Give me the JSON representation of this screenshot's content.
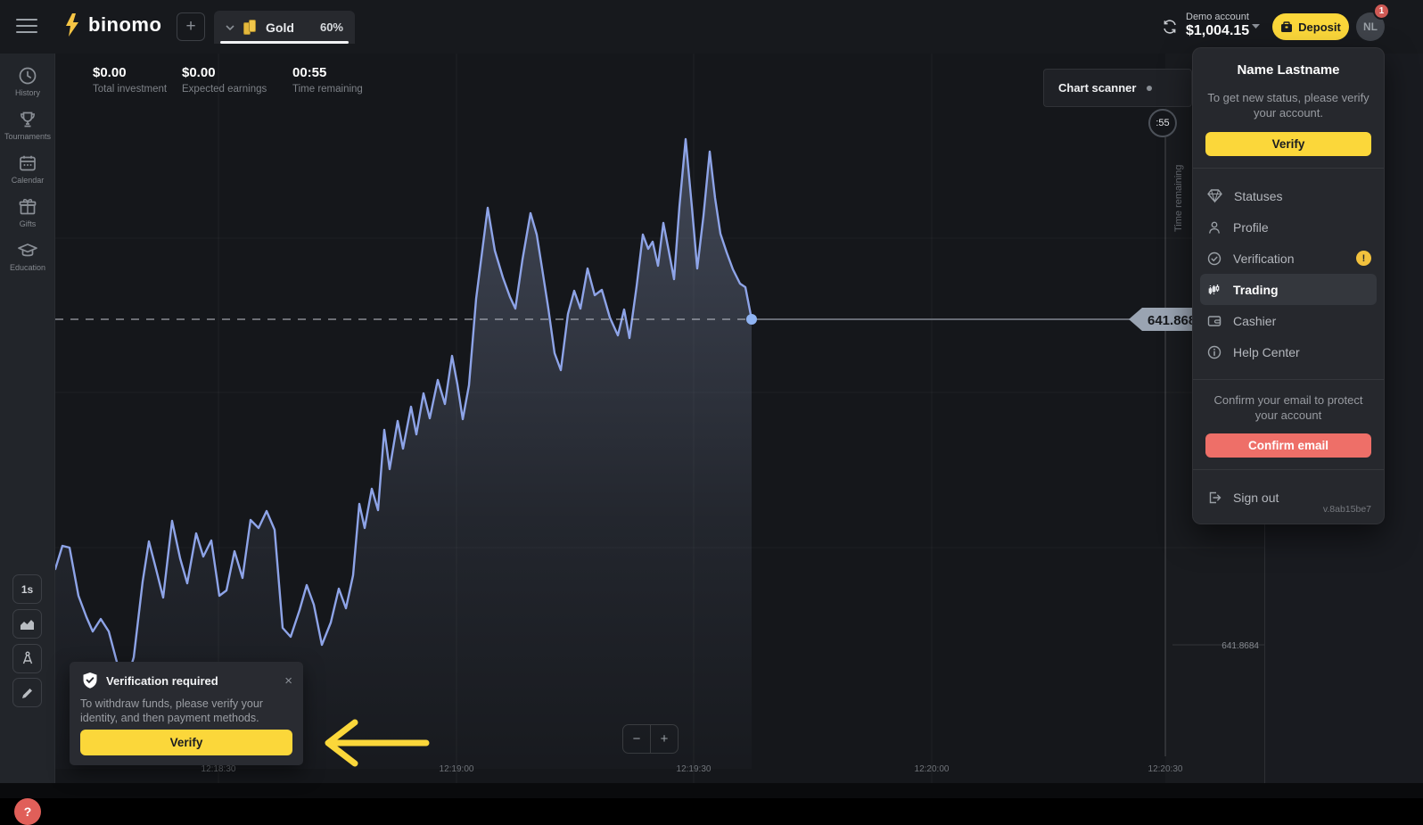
{
  "topbar": {
    "brand": "binomo",
    "plus_label": "+",
    "asset_tab": {
      "name": "Gold",
      "payout": "60%"
    },
    "account": {
      "type": "Demo account",
      "balance": "$1,004.15"
    },
    "deposit_label": "Deposit",
    "avatar_initials": "NL",
    "notification_count": "1"
  },
  "sidebar": {
    "items": [
      {
        "label": "History"
      },
      {
        "label": "Tournaments"
      },
      {
        "label": "Calendar"
      },
      {
        "label": "Gifts"
      },
      {
        "label": "Education"
      }
    ],
    "tools": {
      "interval": "1s"
    },
    "help_label": "?"
  },
  "stats": {
    "total_investment": {
      "value": "$0.00",
      "label": "Total investment"
    },
    "expected_earnings": {
      "value": "$0.00",
      "label": "Expected earnings"
    },
    "time_remaining": {
      "value": "00:55",
      "label": "Time remaining"
    }
  },
  "chart": {
    "scanner_label": "Chart scanner",
    "countdown": ":55",
    "axis_time_label": "Time remaining",
    "price_tag": "641.868",
    "axis_price": "641.8684",
    "time_labels": [
      "12:18:30",
      "12:19:00",
      "12:19:30",
      "12:20:00",
      "12:20:30"
    ],
    "zoom_out": "−",
    "zoom_in": "+"
  },
  "chart_data": {
    "type": "line",
    "asset": "Gold",
    "current_price": 641.868,
    "axis_price": 641.8684,
    "x_ticks": [
      "12:18:30",
      "12:19:00",
      "12:19:30",
      "12:20:00",
      "12:20:30"
    ],
    "line_color": "#8ea4e8",
    "dot_color": "#8fb3f2",
    "fill_baseline": 862,
    "points": [
      [
        62,
        638
      ],
      [
        70,
        612
      ],
      [
        78,
        614
      ],
      [
        88,
        668
      ],
      [
        97,
        692
      ],
      [
        104,
        708
      ],
      [
        113,
        694
      ],
      [
        122,
        708
      ],
      [
        131,
        742
      ],
      [
        137,
        760
      ],
      [
        144,
        757
      ],
      [
        150,
        737
      ],
      [
        160,
        652
      ],
      [
        167,
        607
      ],
      [
        175,
        638
      ],
      [
        183,
        670
      ],
      [
        193,
        584
      ],
      [
        202,
        626
      ],
      [
        210,
        654
      ],
      [
        220,
        598
      ],
      [
        228,
        624
      ],
      [
        237,
        606
      ],
      [
        246,
        668
      ],
      [
        254,
        662
      ],
      [
        263,
        618
      ],
      [
        272,
        648
      ],
      [
        281,
        583
      ],
      [
        290,
        592
      ],
      [
        299,
        573
      ],
      [
        308,
        594
      ],
      [
        317,
        704
      ],
      [
        326,
        714
      ],
      [
        336,
        684
      ],
      [
        344,
        656
      ],
      [
        352,
        678
      ],
      [
        361,
        723
      ],
      [
        371,
        698
      ],
      [
        380,
        660
      ],
      [
        388,
        682
      ],
      [
        396,
        645
      ],
      [
        403,
        565
      ],
      [
        409,
        592
      ],
      [
        417,
        548
      ],
      [
        424,
        572
      ],
      [
        431,
        482
      ],
      [
        437,
        526
      ],
      [
        446,
        472
      ],
      [
        452,
        503
      ],
      [
        461,
        456
      ],
      [
        467,
        487
      ],
      [
        475,
        441
      ],
      [
        482,
        469
      ],
      [
        491,
        426
      ],
      [
        499,
        453
      ],
      [
        507,
        399
      ],
      [
        513,
        431
      ],
      [
        519,
        470
      ],
      [
        526,
        432
      ],
      [
        534,
        335
      ],
      [
        547,
        233
      ],
      [
        555,
        281
      ],
      [
        564,
        311
      ],
      [
        572,
        333
      ],
      [
        578,
        346
      ],
      [
        586,
        291
      ],
      [
        595,
        239
      ],
      [
        602,
        263
      ],
      [
        608,
        301
      ],
      [
        615,
        346
      ],
      [
        622,
        396
      ],
      [
        629,
        415
      ],
      [
        637,
        352
      ],
      [
        644,
        326
      ],
      [
        651,
        346
      ],
      [
        659,
        301
      ],
      [
        667,
        331
      ],
      [
        675,
        325
      ],
      [
        684,
        356
      ],
      [
        693,
        376
      ],
      [
        700,
        347
      ],
      [
        706,
        379
      ],
      [
        714,
        321
      ],
      [
        721,
        263
      ],
      [
        727,
        279
      ],
      [
        732,
        271
      ],
      [
        738,
        298
      ],
      [
        744,
        250
      ],
      [
        750,
        281
      ],
      [
        756,
        313
      ],
      [
        762,
        232
      ],
      [
        769,
        156
      ],
      [
        776,
        232
      ],
      [
        782,
        301
      ],
      [
        789,
        242
      ],
      [
        796,
        170
      ],
      [
        802,
        222
      ],
      [
        808,
        262
      ],
      [
        815,
        283
      ],
      [
        822,
        302
      ],
      [
        830,
        318
      ],
      [
        836,
        322
      ],
      [
        843,
        358
      ]
    ]
  },
  "account_menu": {
    "title": "Name Lastname",
    "status_note": "To get new status, please verify your account.",
    "verify_label": "Verify",
    "items": [
      {
        "label": "Statuses"
      },
      {
        "label": "Profile"
      },
      {
        "label": "Verification"
      },
      {
        "label": "Trading"
      },
      {
        "label": "Cashier"
      },
      {
        "label": "Help Center"
      }
    ],
    "verification_badge": "!",
    "email_note": "Confirm your email to protect your account",
    "confirm_email_label": "Confirm email",
    "sign_out_label": "Sign out",
    "version": "v.8ab15be7"
  },
  "popup": {
    "title": "Verification required",
    "close": "×",
    "body": "To withdraw funds, please verify your identity, and then payment methods.",
    "verify_label": "Verify"
  }
}
